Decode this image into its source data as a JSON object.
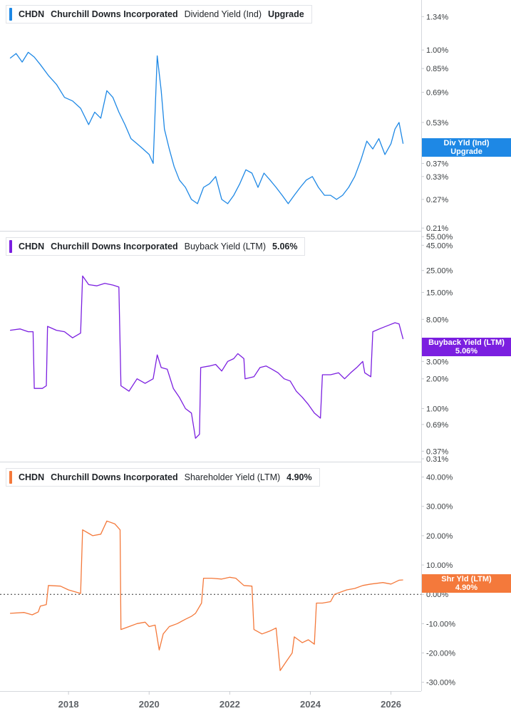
{
  "colors": {
    "dividend": "#1e88e5",
    "buyback": "#7b1fe0",
    "shareholder": "#f4793b",
    "grid": "#e3e5e9",
    "axis_text": "#3c4043"
  },
  "panels": [
    {
      "legend": {
        "ticker": "CHDN",
        "company": "Churchill Downs Incorporated",
        "metric": "Dividend Yield (Ind)",
        "value": "Upgrade"
      },
      "tag": {
        "line1": "Div Yld (Ind)",
        "line2": "Upgrade"
      }
    },
    {
      "legend": {
        "ticker": "CHDN",
        "company": "Churchill Downs Incorporated",
        "metric": "Buyback Yield (LTM)",
        "value": "5.06%"
      },
      "tag": {
        "line1": "Buyback Yield (LTM)",
        "line2": "5.06%"
      }
    },
    {
      "legend": {
        "ticker": "CHDN",
        "company": "Churchill Downs Incorporated",
        "metric": "Shareholder Yield (LTM)",
        "value": "4.90%"
      },
      "tag": {
        "line1": "Shr Yld (LTM)",
        "line2": "4.90%"
      }
    }
  ],
  "chart_data": [
    {
      "type": "line",
      "title": "Dividend Yield (Ind)",
      "series": [
        {
          "name": "Dividend Yield (Ind)",
          "points": [
            [
              2016.55,
              0.93
            ],
            [
              2016.7,
              0.97
            ],
            [
              2016.85,
              0.9
            ],
            [
              2017.0,
              0.98
            ],
            [
              2017.15,
              0.94
            ],
            [
              2017.3,
              0.88
            ],
            [
              2017.5,
              0.8
            ],
            [
              2017.7,
              0.74
            ],
            [
              2017.9,
              0.66
            ],
            [
              2018.1,
              0.64
            ],
            [
              2018.3,
              0.6
            ],
            [
              2018.5,
              0.52
            ],
            [
              2018.65,
              0.58
            ],
            [
              2018.8,
              0.55
            ],
            [
              2018.95,
              0.7
            ],
            [
              2019.1,
              0.66
            ],
            [
              2019.25,
              0.58
            ],
            [
              2019.4,
              0.52
            ],
            [
              2019.55,
              0.46
            ],
            [
              2019.7,
              0.44
            ],
            [
              2019.85,
              0.42
            ],
            [
              2020.0,
              0.4
            ],
            [
              2020.1,
              0.37
            ],
            [
              2020.2,
              0.95
            ],
            [
              2020.3,
              0.7
            ],
            [
              2020.38,
              0.5
            ],
            [
              2020.5,
              0.42
            ],
            [
              2020.62,
              0.36
            ],
            [
              2020.75,
              0.32
            ],
            [
              2020.9,
              0.3
            ],
            [
              2021.05,
              0.27
            ],
            [
              2021.2,
              0.26
            ],
            [
              2021.35,
              0.3
            ],
            [
              2021.5,
              0.31
            ],
            [
              2021.65,
              0.33
            ],
            [
              2021.8,
              0.27
            ],
            [
              2021.95,
              0.26
            ],
            [
              2022.1,
              0.28
            ],
            [
              2022.25,
              0.31
            ],
            [
              2022.4,
              0.35
            ],
            [
              2022.55,
              0.34
            ],
            [
              2022.7,
              0.3
            ],
            [
              2022.85,
              0.34
            ],
            [
              2023.0,
              0.32
            ],
            [
              2023.15,
              0.3
            ],
            [
              2023.3,
              0.28
            ],
            [
              2023.45,
              0.26
            ],
            [
              2023.6,
              0.28
            ],
            [
              2023.75,
              0.3
            ],
            [
              2023.9,
              0.32
            ],
            [
              2024.05,
              0.33
            ],
            [
              2024.2,
              0.3
            ],
            [
              2024.35,
              0.28
            ],
            [
              2024.5,
              0.28
            ],
            [
              2024.65,
              0.27
            ],
            [
              2024.8,
              0.28
            ],
            [
              2024.95,
              0.3
            ],
            [
              2025.1,
              0.33
            ],
            [
              2025.25,
              0.38
            ],
            [
              2025.4,
              0.45
            ],
            [
              2025.55,
              0.42
            ],
            [
              2025.7,
              0.46
            ],
            [
              2025.85,
              0.4
            ],
            [
              2026.0,
              0.44
            ],
            [
              2026.1,
              0.5
            ],
            [
              2026.2,
              0.53
            ],
            [
              2026.3,
              0.44
            ]
          ]
        }
      ],
      "y_ticks": [
        "1.34%",
        "1.00%",
        "0.85%",
        "0.69%",
        "0.53%",
        "0.37%",
        "0.33%",
        "0.27%",
        "0.21%"
      ],
      "y_scale": "log",
      "ylim": [
        0.205,
        1.55
      ]
    },
    {
      "type": "line",
      "title": "Buyback Yield (LTM)",
      "series": [
        {
          "name": "Buyback Yield (LTM)",
          "points": [
            [
              2016.55,
              6.2
            ],
            [
              2016.8,
              6.4
            ],
            [
              2017.0,
              6.0
            ],
            [
              2017.12,
              6.0
            ],
            [
              2017.15,
              1.6
            ],
            [
              2017.35,
              1.6
            ],
            [
              2017.45,
              1.7
            ],
            [
              2017.48,
              6.8
            ],
            [
              2017.7,
              6.2
            ],
            [
              2017.9,
              6.0
            ],
            [
              2018.1,
              5.2
            ],
            [
              2018.3,
              5.8
            ],
            [
              2018.35,
              22.0
            ],
            [
              2018.5,
              18.0
            ],
            [
              2018.7,
              17.5
            ],
            [
              2018.9,
              18.5
            ],
            [
              2019.1,
              17.8
            ],
            [
              2019.25,
              17.0
            ],
            [
              2019.3,
              1.7
            ],
            [
              2019.5,
              1.5
            ],
            [
              2019.7,
              2.0
            ],
            [
              2019.9,
              1.8
            ],
            [
              2020.1,
              2.0
            ],
            [
              2020.2,
              3.5
            ],
            [
              2020.3,
              2.6
            ],
            [
              2020.45,
              2.5
            ],
            [
              2020.6,
              1.6
            ],
            [
              2020.75,
              1.3
            ],
            [
              2020.9,
              1.0
            ],
            [
              2021.05,
              0.9
            ],
            [
              2021.15,
              0.5
            ],
            [
              2021.25,
              0.55
            ],
            [
              2021.28,
              2.6
            ],
            [
              2021.5,
              2.7
            ],
            [
              2021.65,
              2.8
            ],
            [
              2021.8,
              2.4
            ],
            [
              2021.95,
              3.0
            ],
            [
              2022.1,
              3.2
            ],
            [
              2022.2,
              3.6
            ],
            [
              2022.35,
              3.2
            ],
            [
              2022.38,
              2.0
            ],
            [
              2022.6,
              2.1
            ],
            [
              2022.75,
              2.6
            ],
            [
              2022.9,
              2.7
            ],
            [
              2023.05,
              2.5
            ],
            [
              2023.2,
              2.3
            ],
            [
              2023.35,
              2.0
            ],
            [
              2023.5,
              1.9
            ],
            [
              2023.65,
              1.5
            ],
            [
              2023.8,
              1.3
            ],
            [
              2023.95,
              1.1
            ],
            [
              2024.1,
              0.9
            ],
            [
              2024.25,
              0.8
            ],
            [
              2024.3,
              2.2
            ],
            [
              2024.5,
              2.2
            ],
            [
              2024.7,
              2.3
            ],
            [
              2024.85,
              2.0
            ],
            [
              2025.0,
              2.3
            ],
            [
              2025.15,
              2.6
            ],
            [
              2025.3,
              3.0
            ],
            [
              2025.35,
              2.3
            ],
            [
              2025.5,
              2.1
            ],
            [
              2025.55,
              6.0
            ],
            [
              2025.75,
              6.5
            ],
            [
              2025.95,
              7.0
            ],
            [
              2026.1,
              7.4
            ],
            [
              2026.2,
              7.2
            ],
            [
              2026.3,
              5.06
            ]
          ]
        }
      ],
      "y_ticks": [
        "55.00%",
        "45.00%",
        "25.00%",
        "15.00%",
        "8.00%",
        "3.00%",
        "2.00%",
        "1.00%",
        "0.69%",
        "0.37%",
        "0.31%"
      ],
      "y_scale": "log",
      "ylim": [
        0.29,
        62.0
      ]
    },
    {
      "type": "line",
      "title": "Shareholder Yield (LTM)",
      "series": [
        {
          "name": "Shareholder Yield (LTM)",
          "points": [
            [
              2016.55,
              -6.5
            ],
            [
              2016.9,
              -6.2
            ],
            [
              2017.1,
              -7.0
            ],
            [
              2017.25,
              -6.0
            ],
            [
              2017.3,
              -4.0
            ],
            [
              2017.45,
              -3.5
            ],
            [
              2017.5,
              3.0
            ],
            [
              2017.8,
              2.8
            ],
            [
              2018.0,
              1.5
            ],
            [
              2018.25,
              0.5
            ],
            [
              2018.3,
              0.3
            ],
            [
              2018.35,
              22.0
            ],
            [
              2018.6,
              20.0
            ],
            [
              2018.8,
              20.5
            ],
            [
              2018.95,
              25.0
            ],
            [
              2019.15,
              24.0
            ],
            [
              2019.28,
              22.0
            ],
            [
              2019.3,
              -12.0
            ],
            [
              2019.5,
              -11.0
            ],
            [
              2019.7,
              -10.0
            ],
            [
              2019.9,
              -9.5
            ],
            [
              2020.0,
              -11.0
            ],
            [
              2020.15,
              -10.5
            ],
            [
              2020.25,
              -19.0
            ],
            [
              2020.35,
              -13.5
            ],
            [
              2020.5,
              -11.0
            ],
            [
              2020.7,
              -10.0
            ],
            [
              2020.9,
              -8.5
            ],
            [
              2021.05,
              -7.5
            ],
            [
              2021.15,
              -6.5
            ],
            [
              2021.3,
              -3.0
            ],
            [
              2021.35,
              5.5
            ],
            [
              2021.55,
              5.5
            ],
            [
              2021.8,
              5.2
            ],
            [
              2022.0,
              5.8
            ],
            [
              2022.15,
              5.5
            ],
            [
              2022.35,
              3.0
            ],
            [
              2022.55,
              2.8
            ],
            [
              2022.6,
              -12.0
            ],
            [
              2022.8,
              -13.5
            ],
            [
              2023.0,
              -12.5
            ],
            [
              2023.15,
              -11.5
            ],
            [
              2023.25,
              -26.0
            ],
            [
              2023.4,
              -23.0
            ],
            [
              2023.55,
              -20.0
            ],
            [
              2023.6,
              -14.5
            ],
            [
              2023.8,
              -16.5
            ],
            [
              2023.95,
              -15.5
            ],
            [
              2024.1,
              -17.0
            ],
            [
              2024.15,
              -3.0
            ],
            [
              2024.3,
              -3.0
            ],
            [
              2024.5,
              -2.5
            ],
            [
              2024.6,
              0.0
            ],
            [
              2024.9,
              1.5
            ],
            [
              2025.1,
              2.0
            ],
            [
              2025.3,
              3.0
            ],
            [
              2025.5,
              3.5
            ],
            [
              2025.8,
              4.0
            ],
            [
              2026.0,
              3.5
            ],
            [
              2026.2,
              4.8
            ],
            [
              2026.3,
              4.9
            ]
          ]
        }
      ],
      "y_ticks": [
        "40.00%",
        "30.00%",
        "20.00%",
        "10.00%",
        "0.00%",
        "-10.00%",
        "-20.00%",
        "-30.00%"
      ],
      "y_scale": "linear",
      "ylim": [
        -33.0,
        45.0
      ]
    }
  ],
  "x_axis": {
    "ticks": [
      "2018",
      "2020",
      "2022",
      "2024",
      "2026"
    ],
    "xlim": [
      2016.3,
      2026.75
    ]
  }
}
